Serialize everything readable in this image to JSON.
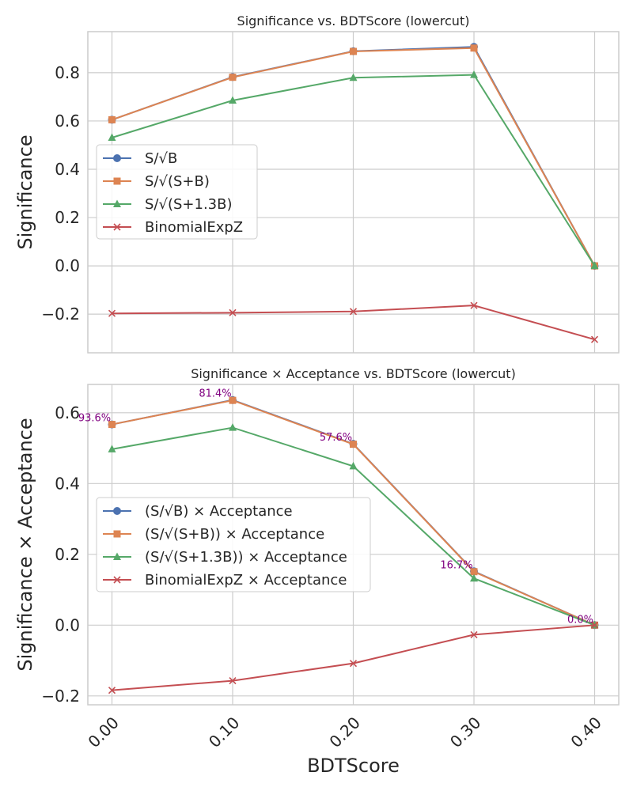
{
  "chart_data": [
    {
      "type": "line",
      "title": "Significance vs. BDTScore (lowercut)",
      "xlabel": "",
      "ylabel": "Significance",
      "x": [
        0.0,
        0.1,
        0.2,
        0.3,
        0.4
      ],
      "xlim": [
        -0.02,
        0.42
      ],
      "ylim": [
        -0.36,
        0.97
      ],
      "yticks": [
        -0.2,
        0.0,
        0.2,
        0.4,
        0.6,
        0.8
      ],
      "ytick_labels": [
        "−0.2",
        "0.0",
        "0.2",
        "0.4",
        "0.6",
        "0.8"
      ],
      "grid": true,
      "legend_position": "center-left",
      "series": [
        {
          "name": "S/√B",
          "color": "#4c72b0",
          "marker": "circle",
          "values": [
            0.605,
            0.782,
            0.889,
            0.907,
            0.0
          ]
        },
        {
          "name": "S/√(S+B)",
          "color": "#dd8452",
          "marker": "square",
          "values": [
            0.605,
            0.781,
            0.888,
            0.902,
            0.0
          ]
        },
        {
          "name": "S/√(S+1.3B)",
          "color": "#55a868",
          "marker": "triangle",
          "values": [
            0.531,
            0.685,
            0.779,
            0.791,
            0.0
          ]
        },
        {
          "name": "BinomialExpZ",
          "color": "#c44e52",
          "marker": "x",
          "values": [
            -0.197,
            -0.194,
            -0.189,
            -0.164,
            -0.305
          ]
        }
      ]
    },
    {
      "type": "line",
      "title": "Significance × Acceptance vs. BDTScore (lowercut)",
      "xlabel": "BDTScore",
      "ylabel": "Significance × Acceptance",
      "x": [
        0.0,
        0.1,
        0.2,
        0.3,
        0.4
      ],
      "xtick_labels": [
        "0.00",
        "0.10",
        "0.20",
        "0.30",
        "0.40"
      ],
      "xlim": [
        -0.02,
        0.42
      ],
      "ylim": [
        -0.225,
        0.68
      ],
      "yticks": [
        -0.2,
        0.0,
        0.2,
        0.4,
        0.6
      ],
      "ytick_labels": [
        "−0.2",
        "0.0",
        "0.2",
        "0.4",
        "0.6"
      ],
      "grid": true,
      "legend_position": "center-left",
      "series": [
        {
          "name": "(S/√B) × Acceptance",
          "color": "#4c72b0",
          "marker": "circle",
          "values": [
            0.567,
            0.636,
            0.512,
            0.152,
            0.0
          ]
        },
        {
          "name": "(S/√(S+B)) × Acceptance",
          "color": "#dd8452",
          "marker": "square",
          "values": [
            0.567,
            0.635,
            0.511,
            0.151,
            0.0
          ]
        },
        {
          "name": "(S/√(S+1.3B)) × Acceptance",
          "color": "#55a868",
          "marker": "triangle",
          "values": [
            0.497,
            0.558,
            0.449,
            0.132,
            0.0
          ]
        },
        {
          "name": "BinomialExpZ × Acceptance",
          "color": "#c44e52",
          "marker": "x",
          "values": [
            -0.184,
            -0.157,
            -0.108,
            -0.027,
            0.0
          ]
        }
      ],
      "annotations": [
        {
          "text": "93.6%",
          "x": 0.0,
          "y": 0.567
        },
        {
          "text": "81.4%",
          "x": 0.1,
          "y": 0.636
        },
        {
          "text": "57.6%",
          "x": 0.2,
          "y": 0.512
        },
        {
          "text": "16.7%",
          "x": 0.3,
          "y": 0.152
        },
        {
          "text": "0.0%",
          "x": 0.4,
          "y": 0.0
        }
      ]
    }
  ]
}
